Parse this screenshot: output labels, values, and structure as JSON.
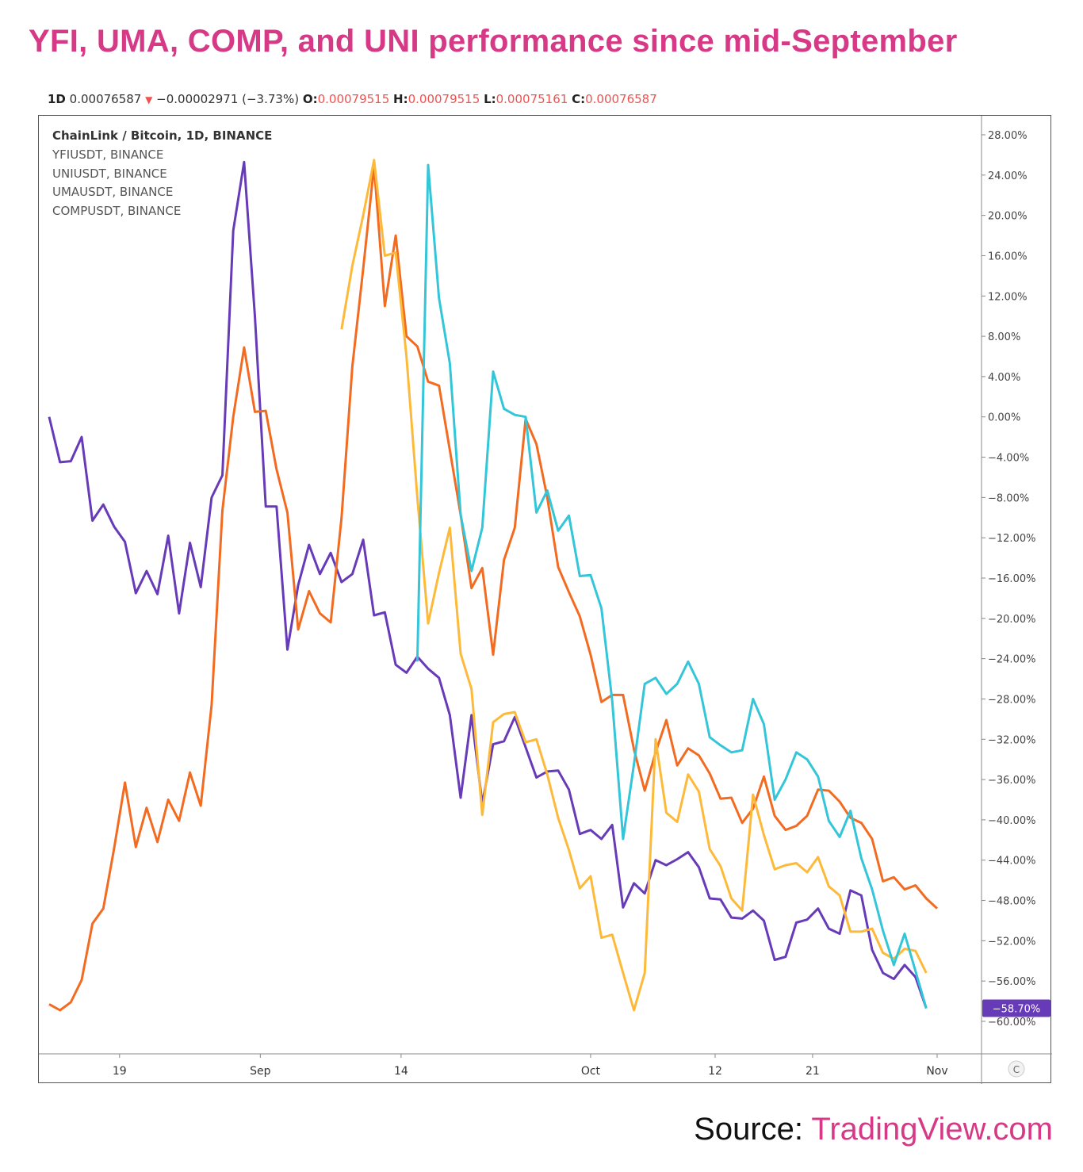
{
  "headline": "YFI, UMA, COMP, and UNI performance since mid-September",
  "ohlc": {
    "interval": "1D",
    "price": "0.00076587",
    "change": "−0.00002971 (−3.73%)",
    "open_label": "O:",
    "open": "0.00079515",
    "high_label": "H:",
    "high": "0.00079515",
    "low_label": "L:",
    "low": "0.00075161",
    "close_label": "C:",
    "close": "0.00076587"
  },
  "source": {
    "label": "Source:",
    "site": "TradingView.com"
  },
  "chart_data": {
    "type": "line",
    "symbols": [
      "ChainLink / Bitcoin, 1D, BINANCE",
      "YFIUSDT, BINANCE",
      "UNIUSDT, BINANCE",
      "UMAUSDT, BINANCE",
      "COMPUSDT, BINANCE"
    ],
    "y_unit": "%",
    "ylim": [
      -62,
      29
    ],
    "yticks": [
      28,
      24,
      20,
      16,
      12,
      8,
      4,
      0,
      -4,
      -8,
      -12,
      -16,
      -20,
      -24,
      -28,
      -32,
      -36,
      -40,
      -44,
      -48,
      -52,
      -56,
      -60
    ],
    "ytick_labels": [
      "28.00%",
      "24.00%",
      "20.00%",
      "16.00%",
      "12.00%",
      "8.00%",
      "4.00%",
      "0.00%",
      "−4.00%",
      "−8.00%",
      "−12.00%",
      "−16.00%",
      "−20.00%",
      "−24.00%",
      "−28.00%",
      "−32.00%",
      "−36.00%",
      "−40.00%",
      "−44.00%",
      "−48.00%",
      "−52.00%",
      "−56.00%",
      "−60.00%"
    ],
    "xlim": [
      0,
      88
    ],
    "xticks": [
      {
        "label": "19",
        "x": 6.5
      },
      {
        "label": "Sep",
        "x": 19.5
      },
      {
        "label": "14",
        "x": 32.5
      },
      {
        "label": "Oct",
        "x": 50
      },
      {
        "label": "12",
        "x": 61.5
      },
      {
        "label": "21",
        "x": 70.5
      },
      {
        "label": "Nov",
        "x": 82
      }
    ],
    "last_value_label": "−58.70%",
    "last_value_color": "#673ab7",
    "corner_button": "C",
    "grid": false,
    "series": [
      {
        "color": "#673ab7",
        "points": [
          [
            0,
            0
          ],
          [
            1,
            -4.5
          ],
          [
            2,
            -4.4
          ],
          [
            3,
            -2
          ],
          [
            4,
            -10.3
          ],
          [
            5,
            -8.7
          ],
          [
            6,
            -10.9
          ],
          [
            7,
            -12.4
          ],
          [
            8,
            -17.5
          ],
          [
            9,
            -15.3
          ],
          [
            10,
            -17.6
          ],
          [
            11,
            -11.8
          ],
          [
            12,
            -19.5
          ],
          [
            13,
            -12.5
          ],
          [
            14,
            -16.9
          ],
          [
            15,
            -8
          ],
          [
            16,
            -5.8
          ],
          [
            17,
            18.5
          ],
          [
            18,
            25.3
          ],
          [
            19,
            10
          ],
          [
            20,
            -8.9
          ],
          [
            21,
            -8.9
          ],
          [
            22,
            -23.1
          ],
          [
            23,
            -16.7
          ],
          [
            24,
            -12.7
          ],
          [
            25,
            -15.6
          ],
          [
            26,
            -13.5
          ],
          [
            27,
            -16.4
          ],
          [
            28,
            -15.6
          ],
          [
            29,
            -12.2
          ],
          [
            30,
            -19.7
          ],
          [
            31,
            -19.4
          ],
          [
            32,
            -24.6
          ],
          [
            33,
            -25.4
          ],
          [
            34,
            -23.8
          ],
          [
            35,
            -25
          ],
          [
            36,
            -25.9
          ],
          [
            37,
            -29.6
          ],
          [
            38,
            -37.8
          ],
          [
            39,
            -29.6
          ],
          [
            40,
            -38.4
          ],
          [
            41,
            -32.5
          ],
          [
            42,
            -32.2
          ],
          [
            43,
            -29.8
          ],
          [
            44,
            -32.8
          ],
          [
            45,
            -35.8
          ],
          [
            46,
            -35.2
          ],
          [
            47,
            -35.1
          ],
          [
            48,
            -37
          ],
          [
            49,
            -41.4
          ],
          [
            50,
            -41
          ],
          [
            51,
            -41.9
          ],
          [
            52,
            -40.5
          ],
          [
            53,
            -48.7
          ],
          [
            54,
            -46.3
          ],
          [
            55,
            -47.3
          ],
          [
            56,
            -44
          ],
          [
            57,
            -44.5
          ],
          [
            58,
            -43.9
          ],
          [
            59,
            -43.2
          ],
          [
            60,
            -44.7
          ],
          [
            61,
            -47.8
          ],
          [
            62,
            -47.9
          ],
          [
            63,
            -49.7
          ],
          [
            64,
            -49.8
          ],
          [
            65,
            -49
          ],
          [
            66,
            -50
          ],
          [
            67,
            -53.9
          ],
          [
            68,
            -53.6
          ],
          [
            69,
            -50.2
          ],
          [
            70,
            -49.9
          ],
          [
            71,
            -48.8
          ],
          [
            72,
            -50.8
          ],
          [
            73,
            -51.3
          ],
          [
            74,
            -47
          ],
          [
            75,
            -47.5
          ],
          [
            76,
            -52.9
          ],
          [
            77,
            -55.2
          ],
          [
            78,
            -55.8
          ],
          [
            79,
            -54.4
          ],
          [
            80,
            -55.6
          ],
          [
            81,
            -58.7
          ]
        ]
      },
      {
        "color": "#f26b21",
        "points": [
          [
            0,
            -58.3
          ],
          [
            1,
            -58.9
          ],
          [
            2,
            -58.1
          ],
          [
            3,
            -55.9
          ],
          [
            4,
            -50.3
          ],
          [
            5,
            -48.8
          ],
          [
            6,
            -42.8
          ],
          [
            7,
            -36.3
          ],
          [
            8,
            -42.7
          ],
          [
            9,
            -38.8
          ],
          [
            10,
            -42.2
          ],
          [
            11,
            -38
          ],
          [
            12,
            -40.1
          ],
          [
            13,
            -35.3
          ],
          [
            14,
            -38.6
          ],
          [
            15,
            -28.6
          ],
          [
            16,
            -9.3
          ],
          [
            17,
            0
          ],
          [
            18,
            6.9
          ],
          [
            19,
            0.5
          ],
          [
            20,
            0.6
          ],
          [
            21,
            -5.2
          ],
          [
            22,
            -9.5
          ],
          [
            23,
            -21.1
          ],
          [
            24,
            -17.3
          ],
          [
            25,
            -19.5
          ],
          [
            26,
            -20.4
          ],
          [
            27,
            -10
          ],
          [
            28,
            5
          ],
          [
            29,
            14.7
          ],
          [
            30,
            24.9
          ],
          [
            31,
            11
          ],
          [
            32,
            18
          ],
          [
            33,
            8
          ],
          [
            34,
            7
          ],
          [
            35,
            3.5
          ],
          [
            36,
            3.1
          ],
          [
            37,
            -3.3
          ],
          [
            38,
            -9.7
          ],
          [
            39,
            -17
          ],
          [
            40,
            -15
          ],
          [
            41,
            -23.6
          ],
          [
            42,
            -14.2
          ],
          [
            43,
            -11
          ],
          [
            44,
            -0.2
          ],
          [
            45,
            -2.7
          ],
          [
            46,
            -8
          ],
          [
            47,
            -14.9
          ],
          [
            48,
            -17.4
          ],
          [
            49,
            -19.8
          ],
          [
            50,
            -23.6
          ],
          [
            51,
            -28.3
          ],
          [
            52,
            -27.6
          ],
          [
            53,
            -27.6
          ],
          [
            54,
            -33
          ],
          [
            55,
            -37.1
          ],
          [
            56,
            -33.3
          ],
          [
            57,
            -30.1
          ],
          [
            58,
            -34.6
          ],
          [
            59,
            -32.9
          ],
          [
            60,
            -33.6
          ],
          [
            61,
            -35.4
          ],
          [
            62,
            -37.9
          ],
          [
            63,
            -37.8
          ],
          [
            64,
            -40.3
          ],
          [
            65,
            -38.9
          ],
          [
            66,
            -35.7
          ],
          [
            67,
            -39.6
          ],
          [
            68,
            -41
          ],
          [
            69,
            -40.6
          ],
          [
            70,
            -39.6
          ],
          [
            71,
            -37
          ],
          [
            72,
            -37.1
          ],
          [
            73,
            -38.2
          ],
          [
            74,
            -39.8
          ],
          [
            75,
            -40.3
          ],
          [
            76,
            -41.9
          ],
          [
            77,
            -46.1
          ],
          [
            78,
            -45.7
          ],
          [
            79,
            -46.9
          ],
          [
            80,
            -46.5
          ],
          [
            81,
            -47.8
          ],
          [
            82,
            -48.8
          ]
        ]
      },
      {
        "color": "#fdba3a",
        "points": [
          [
            27,
            8.7
          ],
          [
            28,
            15
          ],
          [
            29,
            20
          ],
          [
            30,
            25.5
          ],
          [
            31,
            16
          ],
          [
            32,
            16.3
          ],
          [
            33,
            6
          ],
          [
            34,
            -8
          ],
          [
            35,
            -20.5
          ],
          [
            36,
            -15.5
          ],
          [
            37,
            -11
          ],
          [
            38,
            -23.5
          ],
          [
            39,
            -27
          ],
          [
            40,
            -39.5
          ],
          [
            41,
            -30.3
          ],
          [
            42,
            -29.5
          ],
          [
            43,
            -29.3
          ],
          [
            44,
            -32.3
          ],
          [
            45,
            -32
          ],
          [
            46,
            -35.5
          ],
          [
            47,
            -39.8
          ],
          [
            48,
            -43
          ],
          [
            49,
            -46.8
          ],
          [
            50,
            -45.6
          ],
          [
            51,
            -51.7
          ],
          [
            52,
            -51.4
          ],
          [
            53,
            -55.2
          ],
          [
            54,
            -58.9
          ],
          [
            55,
            -55.2
          ],
          [
            56,
            -32
          ],
          [
            57,
            -39.3
          ],
          [
            58,
            -40.2
          ],
          [
            59,
            -35.5
          ],
          [
            60,
            -37.2
          ],
          [
            61,
            -42.9
          ],
          [
            62,
            -44.6
          ],
          [
            63,
            -47.8
          ],
          [
            64,
            -49
          ],
          [
            65,
            -37.5
          ],
          [
            66,
            -41.5
          ],
          [
            67,
            -44.9
          ],
          [
            68,
            -44.5
          ],
          [
            69,
            -44.3
          ],
          [
            70,
            -45.2
          ],
          [
            71,
            -43.7
          ],
          [
            72,
            -46.6
          ],
          [
            73,
            -47.5
          ],
          [
            74,
            -51.1
          ],
          [
            75,
            -51.1
          ],
          [
            76,
            -50.8
          ],
          [
            77,
            -53.2
          ],
          [
            78,
            -53.8
          ],
          [
            79,
            -52.8
          ],
          [
            80,
            -53
          ],
          [
            81,
            -55.2
          ]
        ]
      },
      {
        "color": "#33c6d8",
        "points": [
          [
            34,
            -24.3
          ],
          [
            35,
            25
          ],
          [
            36,
            11.8
          ],
          [
            37,
            5.3
          ],
          [
            38,
            -9.7
          ],
          [
            39,
            -15.3
          ],
          [
            40,
            -11
          ],
          [
            41,
            4.5
          ],
          [
            42,
            0.8
          ],
          [
            43,
            0.2
          ],
          [
            44,
            0
          ],
          [
            45,
            -9.5
          ],
          [
            46,
            -7.3
          ],
          [
            47,
            -11.3
          ],
          [
            48,
            -9.8
          ],
          [
            49,
            -15.8
          ],
          [
            50,
            -15.7
          ],
          [
            51,
            -19
          ],
          [
            52,
            -28.2
          ],
          [
            53,
            -41.9
          ],
          [
            54,
            -34.5
          ],
          [
            55,
            -26.5
          ],
          [
            56,
            -25.9
          ],
          [
            57,
            -27.5
          ],
          [
            58,
            -26.5
          ],
          [
            59,
            -24.3
          ],
          [
            60,
            -26.5
          ],
          [
            61,
            -31.8
          ],
          [
            62,
            -32.6
          ],
          [
            63,
            -33.3
          ],
          [
            64,
            -33.1
          ],
          [
            65,
            -28
          ],
          [
            66,
            -30.5
          ],
          [
            67,
            -38
          ],
          [
            68,
            -36
          ],
          [
            69,
            -33.3
          ],
          [
            70,
            -34
          ],
          [
            71,
            -35.7
          ],
          [
            72,
            -40.1
          ],
          [
            73,
            -41.7
          ],
          [
            74,
            -39.1
          ],
          [
            75,
            -43.8
          ],
          [
            76,
            -46.9
          ],
          [
            77,
            -51
          ],
          [
            78,
            -54.4
          ],
          [
            79,
            -51.3
          ],
          [
            80,
            -55
          ],
          [
            81,
            -58.7
          ]
        ]
      }
    ]
  }
}
